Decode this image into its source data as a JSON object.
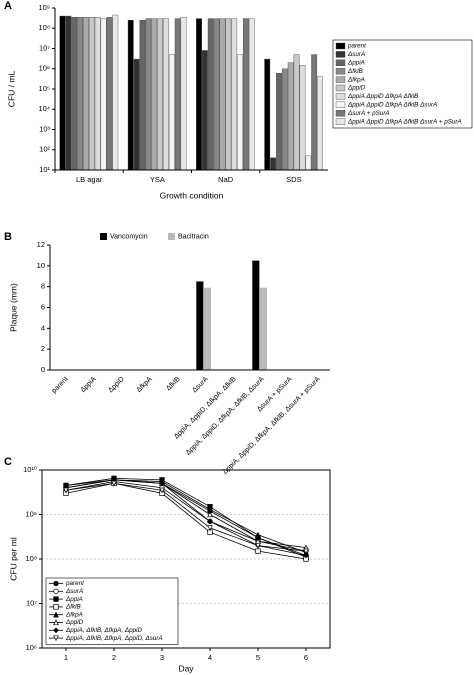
{
  "chart_data": [
    {
      "type": "bar",
      "label": "A",
      "scale": "log",
      "x_label": "Growth condition",
      "y_label": "CFU / mL",
      "categories": [
        "LB agar",
        "YSA",
        "NaD",
        "SDS"
      ],
      "ylim": [
        10,
        1000000000
      ],
      "yticks": [
        {
          "value": 10,
          "label": "10¹"
        },
        {
          "value": 100,
          "label": "10²"
        },
        {
          "value": 1000,
          "label": "10³"
        },
        {
          "value": 10000,
          "label": "10⁴"
        },
        {
          "value": 100000,
          "label": "10⁵"
        },
        {
          "value": 1000000,
          "label": "10⁶"
        },
        {
          "value": 10000000,
          "label": "10⁷"
        },
        {
          "value": 100000000,
          "label": "10⁸"
        },
        {
          "value": 1000000000,
          "label": "10⁹"
        }
      ],
      "legend": "right",
      "xtick_rotation": 0,
      "series": [
        {
          "name": "parent",
          "color": "#000000",
          "values": [
            400000000,
            250000000,
            300000000,
            3000000
          ]
        },
        {
          "name": "ΔsurA",
          "color": "#333333",
          "values": [
            400000000,
            3000000,
            8000000,
            40
          ]
        },
        {
          "name": "ΔppiA",
          "color": "#666666",
          "values": [
            350000000,
            250000000,
            300000000,
            600000
          ]
        },
        {
          "name": "ΔfklB",
          "color": "#888888",
          "values": [
            350000000,
            300000000,
            300000000,
            1000000
          ]
        },
        {
          "name": "ΔfkpA",
          "color": "#aaaaaa",
          "values": [
            350000000,
            300000000,
            300000000,
            2000000
          ]
        },
        {
          "name": "ΔppiD",
          "color": "#c8c8c8",
          "values": [
            350000000,
            300000000,
            300000000,
            5000000
          ]
        },
        {
          "name": "ΔppiA ΔppiD ΔfkpA ΔfklB",
          "color": "#dddddd",
          "values": [
            350000000,
            300000000,
            300000000,
            1500000
          ]
        },
        {
          "name": "ΔppiA ΔppiD ΔfkpA ΔfklB ΔsurA",
          "color": "#f4f4f4",
          "values": [
            300000000,
            5000000,
            5000000,
            50
          ]
        },
        {
          "name": "ΔsurA + pSurA",
          "color": "#777777",
          "values": [
            350000000,
            300000000,
            300000000,
            5000000
          ]
        },
        {
          "name": "ΔppiA ΔppiD ΔfkpA ΔfklB ΔsurA + pSurA",
          "color": "#e8e8e8",
          "values": [
            450000000,
            350000000,
            300000000,
            400000
          ]
        }
      ]
    },
    {
      "type": "bar",
      "label": "B",
      "scale": "linear",
      "y_label": "Plaque (mm)",
      "categories": [
        "parent",
        "ΔppiA",
        "ΔppiD",
        "ΔfkpA",
        "ΔfklB",
        "ΔsurA",
        "ΔppiA, ΔppiD, ΔfkpA, ΔfklB",
        "ΔppiA, ΔppiD, ΔfkpA, ΔfklB, ΔsurA",
        "ΔsurA + pSurA",
        "ΔppiA, ΔppiD, ΔfkpA, ΔfklB, ΔsurA + pSurA"
      ],
      "ylim": [
        0,
        12
      ],
      "yticks": [
        0,
        2,
        4,
        6,
        8,
        10,
        12
      ],
      "legend": "top",
      "xtick_rotation": 45,
      "series": [
        {
          "name": "Vancomycin",
          "color": "#000000",
          "values": [
            0,
            0,
            0,
            0,
            0,
            8.5,
            0,
            10.5,
            0,
            0
          ]
        },
        {
          "name": "Bacitracin",
          "color": "#bbbbbb",
          "values": [
            0,
            0,
            0,
            0,
            0,
            7.9,
            0,
            7.9,
            0,
            0
          ]
        }
      ]
    },
    {
      "type": "line",
      "label": "C",
      "scale": "log",
      "x_label": "Day",
      "y_label": "CFU per ml",
      "x": [
        1,
        2,
        3,
        4,
        5,
        6
      ],
      "xlim": [
        0.5,
        6.5
      ],
      "xticks": [
        1,
        2,
        3,
        4,
        5,
        6
      ],
      "ylim": [
        1000000,
        10000000000
      ],
      "yticks": [
        {
          "value": 1000000,
          "label": "10⁶"
        },
        {
          "value": 10000000,
          "label": "10⁷"
        },
        {
          "value": 100000000,
          "label": "10⁸"
        },
        {
          "value": 1000000000,
          "label": "10⁹"
        },
        {
          "value": 10000000000,
          "label": "10¹⁰"
        }
      ],
      "grid": true,
      "legend": "lower left",
      "series": [
        {
          "name": "parent",
          "color": "#000000",
          "marker": "circle",
          "filled": true,
          "values": [
            4000000000,
            6000000000,
            5000000000,
            1200000000,
            300000000,
            120000000
          ]
        },
        {
          "name": "ΔsurA",
          "color": "#000000",
          "marker": "circle",
          "filled": false,
          "values": [
            3500000000,
            5500000000,
            4000000000,
            700000000,
            250000000,
            150000000
          ]
        },
        {
          "name": "ΔppiA",
          "color": "#000000",
          "marker": "square",
          "filled": true,
          "values": [
            4500000000,
            6500000000,
            6000000000,
            1500000000,
            300000000,
            110000000
          ]
        },
        {
          "name": "ΔfklB",
          "color": "#000000",
          "marker": "square",
          "filled": false,
          "values": [
            3000000000,
            5000000000,
            3000000000,
            400000000,
            150000000,
            100000000
          ]
        },
        {
          "name": "ΔfkpA",
          "color": "#000000",
          "marker": "triangle",
          "filled": true,
          "values": [
            4000000000,
            6000000000,
            5500000000,
            1300000000,
            350000000,
            140000000
          ]
        },
        {
          "name": "ΔppiD",
          "color": "#000000",
          "marker": "triangle",
          "filled": false,
          "values": [
            4000000000,
            6000000000,
            5000000000,
            1000000000,
            250000000,
            180000000
          ]
        },
        {
          "name": "ΔppiA, ΔfklB, ΔfkpA, ΔppiD",
          "color": "#000000",
          "marker": "diamond",
          "filled": true,
          "values": [
            4500000000,
            6000000000,
            5000000000,
            700000000,
            200000000,
            120000000
          ]
        },
        {
          "name": "ΔppiA, ΔfklB, ΔfkpA, ΔppiD, ΔsurA",
          "color": "#000000",
          "marker": "triangle-down",
          "filled": false,
          "values": [
            3500000000,
            5000000000,
            3500000000,
            500000000,
            200000000,
            150000000
          ]
        }
      ]
    }
  ]
}
